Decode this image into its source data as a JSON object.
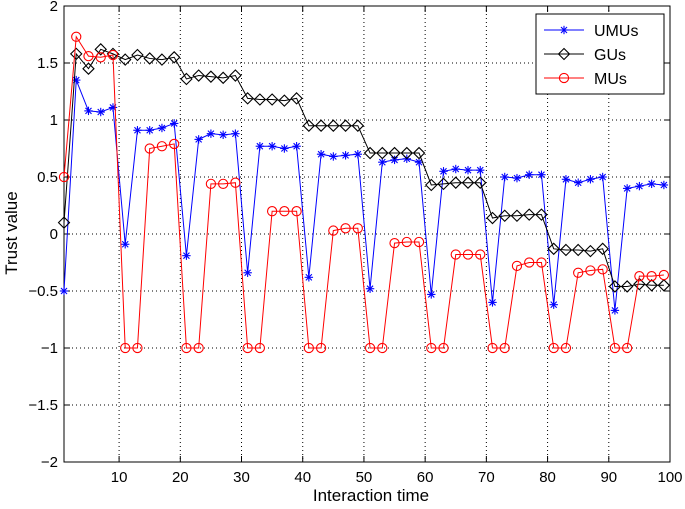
{
  "chart_data": {
    "type": "line",
    "title": "",
    "xlabel": "Interaction time",
    "ylabel": "Trust value",
    "xlim": [
      1,
      100
    ],
    "ylim": [
      -2,
      2
    ],
    "xticks": [
      10,
      20,
      30,
      40,
      50,
      60,
      70,
      80,
      90,
      100
    ],
    "yticks": [
      -2,
      -1.5,
      -1,
      -0.5,
      0,
      0.5,
      1,
      1.5,
      2
    ],
    "grid": true,
    "legend_position": "top-right",
    "series": [
      {
        "name": "UMUs",
        "color": "#0000ff",
        "marker": "asterisk",
        "x": [
          1,
          3,
          5,
          7,
          9,
          11,
          13,
          15,
          17,
          19,
          21,
          23,
          25,
          27,
          29,
          31,
          33,
          35,
          37,
          39,
          41,
          43,
          45,
          47,
          49,
          51,
          53,
          55,
          57,
          59,
          61,
          63,
          65,
          67,
          69,
          71,
          73,
          75,
          77,
          79,
          81,
          83,
          85,
          87,
          89,
          91,
          93,
          95,
          97,
          99
        ],
        "y": [
          -0.5,
          1.35,
          1.08,
          1.07,
          1.11,
          -0.09,
          0.91,
          0.91,
          0.93,
          0.97,
          -0.19,
          0.83,
          0.88,
          0.87,
          0.88,
          -0.34,
          0.77,
          0.77,
          0.75,
          0.77,
          -0.38,
          0.7,
          0.68,
          0.69,
          0.7,
          -0.48,
          0.63,
          0.65,
          0.66,
          0.63,
          -0.53,
          0.55,
          0.57,
          0.56,
          0.56,
          -0.6,
          0.5,
          0.49,
          0.52,
          0.52,
          -0.62,
          0.48,
          0.45,
          0.48,
          0.5,
          -0.67,
          0.4,
          0.42,
          0.44,
          0.43
        ]
      },
      {
        "name": "GUs",
        "color": "#000000",
        "marker": "diamond",
        "x": [
          1,
          3,
          5,
          7,
          9,
          11,
          13,
          15,
          17,
          19,
          21,
          23,
          25,
          27,
          29,
          31,
          33,
          35,
          37,
          39,
          41,
          43,
          45,
          47,
          49,
          51,
          53,
          55,
          57,
          59,
          61,
          63,
          65,
          67,
          69,
          71,
          73,
          75,
          77,
          79,
          81,
          83,
          85,
          87,
          89,
          91,
          93,
          95,
          97,
          99
        ],
        "y": [
          0.1,
          1.58,
          1.45,
          1.62,
          1.58,
          1.53,
          1.57,
          1.54,
          1.53,
          1.55,
          1.36,
          1.39,
          1.38,
          1.37,
          1.39,
          1.19,
          1.18,
          1.18,
          1.17,
          1.19,
          0.95,
          0.95,
          0.95,
          0.95,
          0.95,
          0.71,
          0.71,
          0.71,
          0.71,
          0.71,
          0.43,
          0.44,
          0.45,
          0.45,
          0.45,
          0.14,
          0.16,
          0.16,
          0.17,
          0.17,
          -0.13,
          -0.14,
          -0.14,
          -0.15,
          -0.13,
          -0.46,
          -0.46,
          -0.44,
          -0.45,
          -0.45
        ]
      },
      {
        "name": "MUs",
        "color": "#ff0000",
        "marker": "circle",
        "x": [
          1,
          3,
          5,
          7,
          9,
          11,
          13,
          15,
          17,
          19,
          21,
          23,
          25,
          27,
          29,
          31,
          33,
          35,
          37,
          39,
          41,
          43,
          45,
          47,
          49,
          51,
          53,
          55,
          57,
          59,
          61,
          63,
          65,
          67,
          69,
          71,
          73,
          75,
          77,
          79,
          81,
          83,
          85,
          87,
          89,
          91,
          93,
          95,
          97,
          99
        ],
        "y": [
          0.5,
          1.73,
          1.56,
          1.55,
          1.57,
          -1.0,
          -1.0,
          0.75,
          0.77,
          0.79,
          -1.0,
          -1.0,
          0.44,
          0.44,
          0.45,
          -1.0,
          -1.0,
          0.2,
          0.2,
          0.2,
          -1.0,
          -1.0,
          0.03,
          0.05,
          0.05,
          -1.0,
          -1.0,
          -0.08,
          -0.07,
          -0.07,
          -1.0,
          -1.0,
          -0.18,
          -0.18,
          -0.18,
          -1.0,
          -1.0,
          -0.28,
          -0.25,
          -0.25,
          -1.0,
          -1.0,
          -0.34,
          -0.32,
          -0.31,
          -1.0,
          -1.0,
          -0.37,
          -0.37,
          -0.36
        ]
      }
    ]
  }
}
